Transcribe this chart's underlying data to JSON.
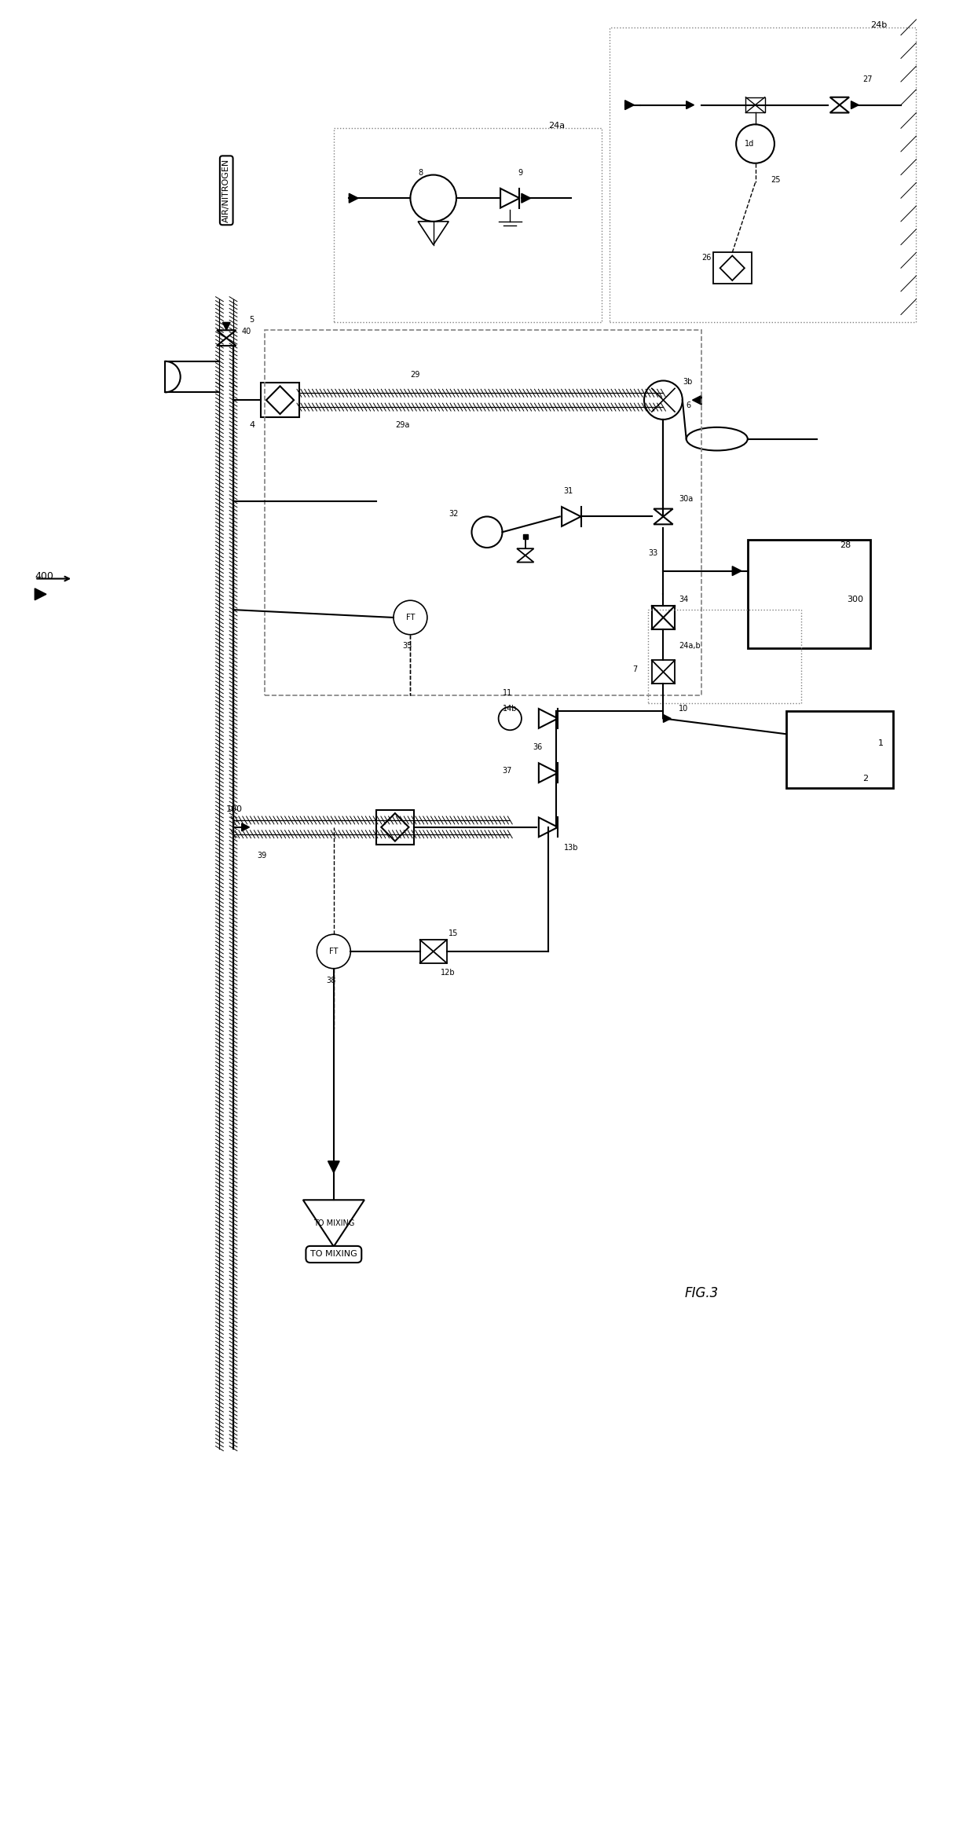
{
  "title": "FIG.3",
  "bg_color": "#ffffff",
  "line_color": "#000000",
  "hatch_color": "#000000",
  "fig_width": 12.4,
  "fig_height": 23.33,
  "labels": {
    "fig_label": "FIG.3",
    "air_nitrogen": "AIR/NITROGEN",
    "to_mixing": "TO MIXING",
    "ref_400": "400",
    "ref_100": "100",
    "ref_300": "300",
    "ref_1": "1",
    "ref_2": "2",
    "ref_4": "4",
    "ref_5": "5",
    "ref_6": "6",
    "ref_7": "7",
    "ref_8": "8",
    "ref_9": "9",
    "ref_10": "10",
    "ref_11": "11",
    "ref_12b": "12b",
    "ref_13b": "13b",
    "ref_14b": "14b",
    "ref_15": "15",
    "ref_24a": "24a",
    "ref_24b": "24b",
    "ref_24ab": "24a,b",
    "ref_25": "25",
    "ref_26": "26",
    "ref_27": "27",
    "ref_28": "28",
    "ref_29": "29",
    "ref_29a": "29a",
    "ref_30a": "30a",
    "ref_31": "31",
    "ref_32": "32",
    "ref_33": "33",
    "ref_34": "34",
    "ref_35": "35",
    "ref_36": "36",
    "ref_37": "37",
    "ref_38": "38",
    "ref_39": "39",
    "ref_40": "40",
    "ref_3b": "3b",
    "ref_1d": "1d"
  }
}
